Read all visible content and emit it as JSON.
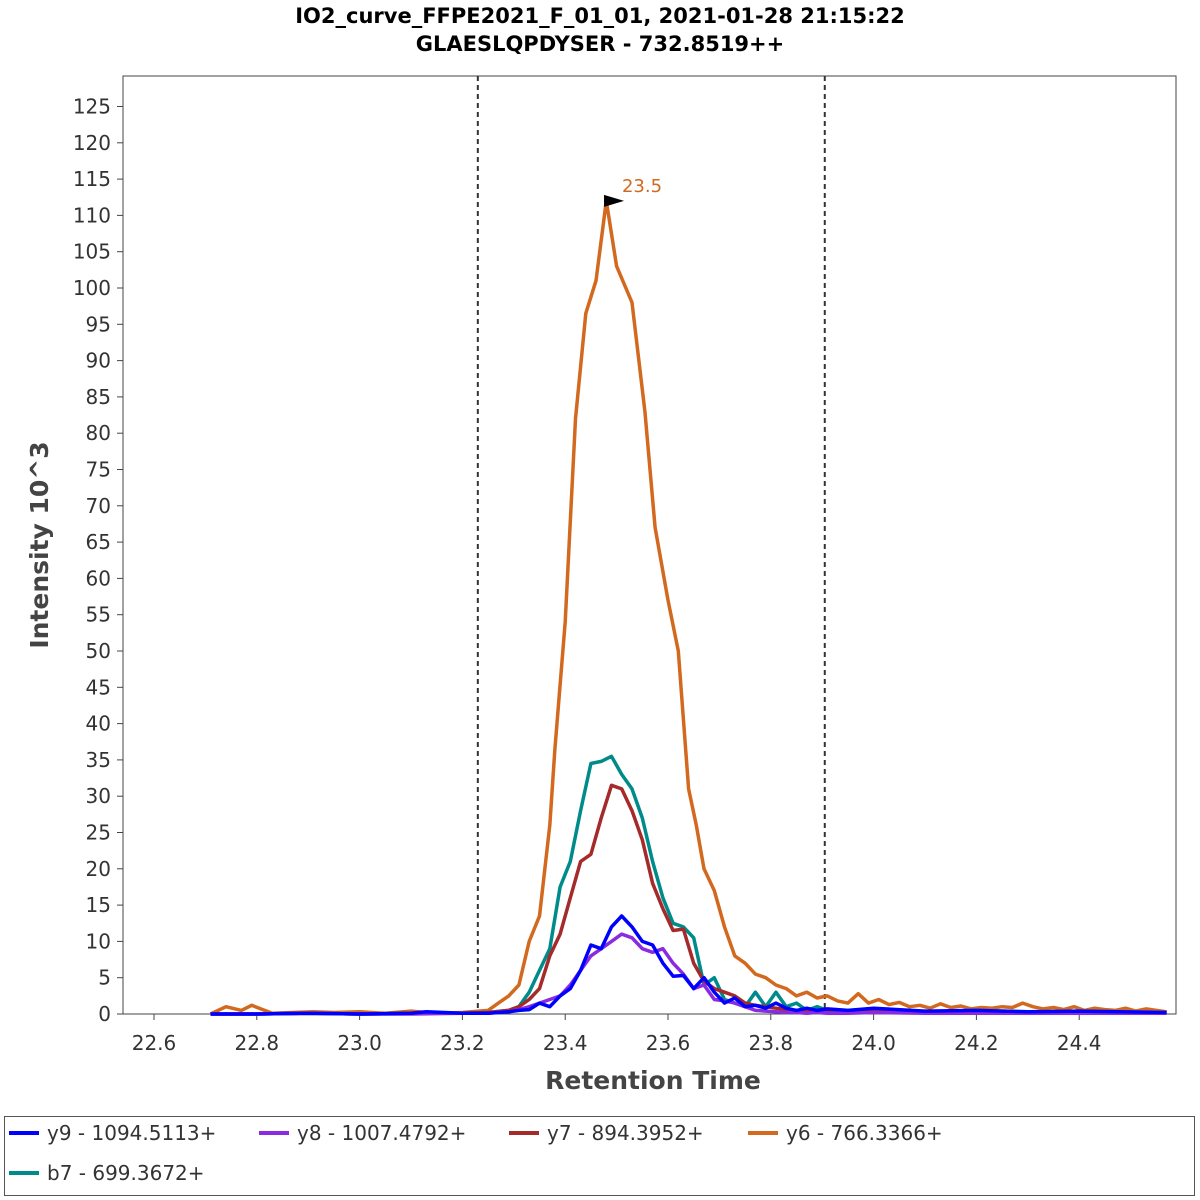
{
  "title_line1": "IO2_curve_FFPE2021_F_01_01, 2021-01-28 21:15:22",
  "title_line2": "GLAESLQPDYSER - 732.8519++",
  "chart_data": {
    "type": "line",
    "title": "IO2_curve_FFPE2021_F_01_01, 2021-01-28 21:15:22 / GLAESLQPDYSER - 732.8519++",
    "xlabel": "Retention Time",
    "ylabel": "Intensity 10^3",
    "xlim": [
      22.55,
      24.58
    ],
    "ylim": [
      0,
      128
    ],
    "x_ticks": [
      "22.6",
      "22.8",
      "23.0",
      "23.2",
      "23.4",
      "23.6",
      "23.8",
      "24.0",
      "24.2",
      "24.4"
    ],
    "y_ticks": [
      "0",
      "5",
      "10",
      "15",
      "20",
      "25",
      "30",
      "35",
      "40",
      "45",
      "50",
      "55",
      "60",
      "65",
      "70",
      "75",
      "80",
      "85",
      "90",
      "95",
      "100",
      "105",
      "110",
      "115",
      "120",
      "125"
    ],
    "grid": false,
    "legend_position": "bottom",
    "boundaries": [
      23.23,
      23.905
    ],
    "peak_annotation": {
      "x": 23.53,
      "y": 112,
      "label": "23.5",
      "color": "#d2691e"
    },
    "series": [
      {
        "name": "y6 - 766.3366+",
        "color": "#d2691e",
        "x": [
          22.71,
          22.74,
          22.77,
          22.79,
          22.83,
          22.87,
          22.91,
          22.95,
          23.0,
          23.05,
          23.1,
          23.15,
          23.2,
          23.25,
          23.27,
          23.29,
          23.31,
          23.33,
          23.35,
          23.37,
          23.38,
          23.4,
          23.42,
          23.44,
          23.46,
          23.48,
          23.5,
          23.53,
          23.555,
          23.575,
          23.6,
          23.62,
          23.64,
          23.655,
          23.67,
          23.69,
          23.71,
          23.73,
          23.75,
          23.77,
          23.79,
          23.81,
          23.83,
          23.85,
          23.87,
          23.89,
          23.91,
          23.93,
          23.95,
          23.97,
          23.99,
          24.01,
          24.03,
          24.05,
          24.07,
          24.09,
          24.11,
          24.13,
          24.15,
          24.17,
          24.19,
          24.21,
          24.23,
          24.25,
          24.27,
          24.29,
          24.31,
          24.33,
          24.35,
          24.37,
          24.39,
          24.41,
          24.43,
          24.45,
          24.47,
          24.49,
          24.51,
          24.53,
          24.57
        ],
        "values": [
          0,
          1,
          0.5,
          1.2,
          0.1,
          0.2,
          0.3,
          0.2,
          0.3,
          0.1,
          0.4,
          0.1,
          0.2,
          0.5,
          1.5,
          2.5,
          4,
          10,
          13.5,
          26,
          36.5,
          54,
          82,
          96.5,
          101,
          112,
          103,
          98,
          83,
          67,
          57,
          50,
          31,
          26,
          20,
          17,
          12,
          8,
          7,
          5.5,
          5,
          4,
          3.5,
          2.5,
          3,
          2.2,
          2.5,
          1.8,
          1.5,
          2.8,
          1.5,
          2,
          1.3,
          1.6,
          1,
          1.2,
          0.8,
          1.4,
          0.9,
          1.1,
          0.7,
          0.9,
          0.8,
          1,
          0.9,
          1.5,
          1,
          0.7,
          0.9,
          0.6,
          1,
          0.5,
          0.8,
          0.6,
          0.5,
          0.8,
          0.4,
          0.7,
          0.3
        ]
      },
      {
        "name": "b7 - 699.3672+",
        "color": "#008b8b",
        "x": [
          22.71,
          22.8,
          22.9,
          23.0,
          23.1,
          23.2,
          23.25,
          23.29,
          23.31,
          23.33,
          23.35,
          23.37,
          23.39,
          23.41,
          23.43,
          23.45,
          23.47,
          23.49,
          23.51,
          23.53,
          23.55,
          23.57,
          23.59,
          23.61,
          23.63,
          23.65,
          23.67,
          23.69,
          23.71,
          23.73,
          23.75,
          23.77,
          23.79,
          23.81,
          23.83,
          23.85,
          23.87,
          23.89,
          23.91,
          23.95,
          24.0,
          24.1,
          24.2,
          24.3,
          24.4,
          24.57
        ],
        "values": [
          0,
          0,
          0.1,
          0,
          0.1,
          0.1,
          0.2,
          0.5,
          1,
          3,
          6,
          9,
          17.5,
          21,
          28,
          34.5,
          34.8,
          35.5,
          33,
          31,
          27,
          21,
          16,
          12.5,
          12,
          10.5,
          4,
          5,
          2,
          1.5,
          1,
          3,
          1,
          3,
          1,
          1.5,
          0.5,
          1,
          0.5,
          0.3,
          0.5,
          0.3,
          0.5,
          0.3,
          0.3,
          0.2
        ]
      },
      {
        "name": "y7 - 894.3952+",
        "color": "#a52a2a",
        "x": [
          22.71,
          22.8,
          22.9,
          23.0,
          23.1,
          23.2,
          23.25,
          23.29,
          23.31,
          23.33,
          23.35,
          23.37,
          23.39,
          23.41,
          23.43,
          23.45,
          23.47,
          23.49,
          23.51,
          23.53,
          23.55,
          23.57,
          23.59,
          23.61,
          23.63,
          23.65,
          23.67,
          23.69,
          23.71,
          23.73,
          23.75,
          23.77,
          23.79,
          23.81,
          23.83,
          23.85,
          23.87,
          23.89,
          23.91,
          23.95,
          24.0,
          24.1,
          24.2,
          24.3,
          24.4,
          24.57
        ],
        "values": [
          0,
          0,
          0.1,
          0,
          0.1,
          0.1,
          0.2,
          0.5,
          1,
          2,
          3.5,
          8,
          11,
          16,
          21,
          22,
          27,
          31.5,
          31,
          28,
          24,
          18,
          14.5,
          11.5,
          11.7,
          7,
          4.5,
          3.5,
          3,
          2.5,
          1.5,
          1.2,
          1,
          0.8,
          0.6,
          0.5,
          0.4,
          0.5,
          0.3,
          0.3,
          0.4,
          0.3,
          0.3,
          0.2,
          0.3,
          0.2
        ]
      },
      {
        "name": "y8 - 1007.4792+",
        "color": "#8a2be2",
        "x": [
          22.71,
          22.8,
          22.9,
          23.0,
          23.1,
          23.2,
          23.25,
          23.29,
          23.31,
          23.33,
          23.35,
          23.37,
          23.39,
          23.41,
          23.43,
          23.45,
          23.47,
          23.49,
          23.51,
          23.53,
          23.55,
          23.57,
          23.59,
          23.61,
          23.63,
          23.65,
          23.67,
          23.69,
          23.71,
          23.73,
          23.75,
          23.77,
          23.79,
          23.81,
          23.83,
          23.85,
          23.87,
          23.89,
          23.91,
          23.95,
          24.0,
          24.1,
          24.2,
          24.3,
          24.4,
          24.57
        ],
        "values": [
          0,
          0,
          0.1,
          0,
          0,
          0.1,
          0.1,
          0.3,
          0.6,
          1,
          1.5,
          2,
          2.5,
          4,
          6,
          8,
          9,
          10,
          11,
          10.5,
          9,
          8.5,
          9,
          7,
          5.5,
          3.5,
          4,
          2,
          1.8,
          1.5,
          1,
          0.5,
          0.4,
          0.3,
          0.2,
          0.2,
          0.1,
          0.2,
          0.1,
          0.1,
          0.2,
          0.1,
          0.1,
          0.1,
          0.1,
          0.1
        ]
      },
      {
        "name": "y9 - 1094.5113+",
        "color": "#0000ff",
        "x": [
          22.71,
          22.8,
          22.9,
          23.0,
          23.1,
          23.13,
          23.2,
          23.25,
          23.29,
          23.31,
          23.33,
          23.35,
          23.37,
          23.39,
          23.41,
          23.43,
          23.45,
          23.47,
          23.49,
          23.51,
          23.53,
          23.55,
          23.57,
          23.59,
          23.61,
          23.63,
          23.65,
          23.67,
          23.69,
          23.71,
          23.73,
          23.75,
          23.77,
          23.79,
          23.81,
          23.83,
          23.85,
          23.87,
          23.89,
          23.91,
          23.95,
          24.0,
          24.1,
          24.2,
          24.3,
          24.4,
          24.57
        ],
        "values": [
          0,
          0,
          0.1,
          0,
          0.1,
          0.3,
          0.1,
          0.1,
          0.3,
          0.5,
          0.6,
          1.5,
          1,
          2.5,
          3.5,
          6,
          9.5,
          9,
          12,
          13.5,
          12,
          10,
          9.5,
          7,
          5.2,
          5.3,
          3.5,
          5,
          3,
          1.5,
          2.2,
          1,
          1.2,
          0.8,
          1.5,
          0.8,
          0.5,
          0.8,
          0.5,
          0.7,
          0.5,
          0.8,
          0.4,
          0.5,
          0.3,
          0.4,
          0.2
        ]
      }
    ]
  },
  "legend": [
    {
      "label": "y9 - 1094.5113+",
      "color": "#0000ff"
    },
    {
      "label": "y8 - 1007.4792+",
      "color": "#8a2be2"
    },
    {
      "label": "y7 - 894.3952+",
      "color": "#a52a2a"
    },
    {
      "label": "y6 - 766.3366+",
      "color": "#d2691e"
    },
    {
      "label": "b7 - 699.3672+",
      "color": "#008b8b"
    }
  ]
}
